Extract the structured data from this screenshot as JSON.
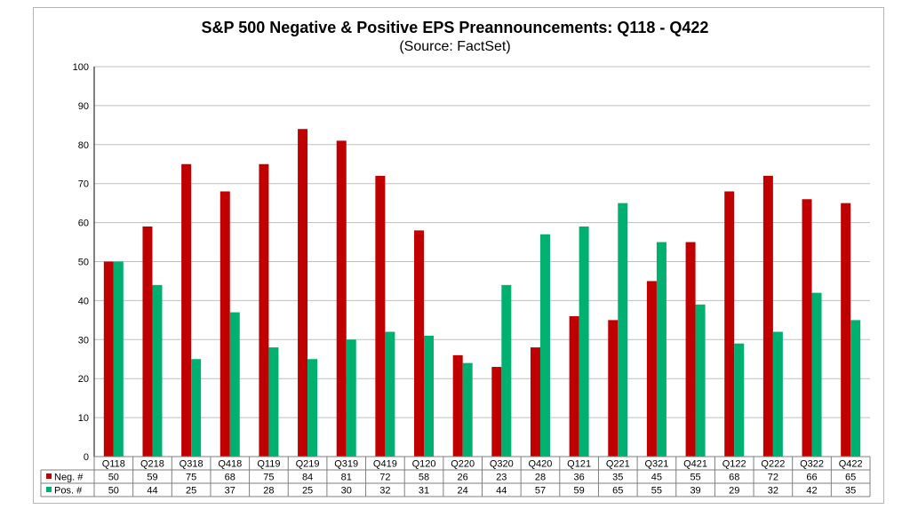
{
  "chart_data": {
    "type": "bar",
    "title": "S&P 500 Negative & Positive EPS Preannouncements: Q118 - Q422",
    "subtitle": "(Source: FactSet)",
    "categories": [
      "Q118",
      "Q218",
      "Q318",
      "Q418",
      "Q119",
      "Q219",
      "Q319",
      "Q419",
      "Q120",
      "Q220",
      "Q320",
      "Q420",
      "Q121",
      "Q221",
      "Q321",
      "Q421",
      "Q122",
      "Q222",
      "Q322",
      "Q422"
    ],
    "series": [
      {
        "name": "Neg. #",
        "color": "#c00000",
        "values": [
          50,
          59,
          75,
          68,
          75,
          84,
          81,
          72,
          58,
          26,
          23,
          28,
          36,
          35,
          45,
          55,
          68,
          72,
          66,
          65
        ]
      },
      {
        "name": "Pos. #",
        "color": "#00b070",
        "values": [
          50,
          44,
          25,
          37,
          28,
          25,
          30,
          32,
          31,
          24,
          44,
          57,
          59,
          65,
          55,
          39,
          29,
          32,
          42,
          35
        ]
      }
    ],
    "ylim": [
      0,
      100
    ],
    "yticks": [
      0,
      10,
      20,
      30,
      40,
      50,
      60,
      70,
      80,
      90,
      100
    ],
    "grid": true,
    "legend": "data-table"
  }
}
